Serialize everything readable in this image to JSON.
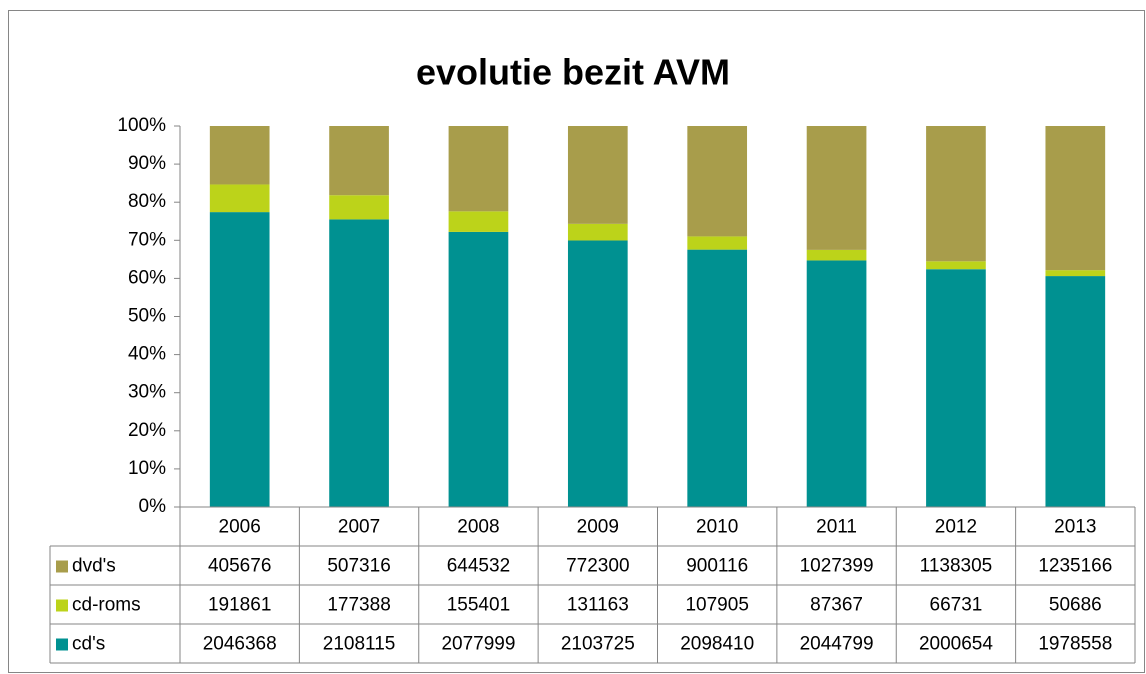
{
  "chart_data": {
    "type": "stacked100",
    "title": "evolutie bezit AVM",
    "categories": [
      "2006",
      "2007",
      "2008",
      "2009",
      "2010",
      "2011",
      "2012",
      "2013"
    ],
    "series": [
      {
        "name": "cd's",
        "color": "#009191",
        "values": [
          2046368,
          2108115,
          2077999,
          2103725,
          2098410,
          2044799,
          2000654,
          1978558
        ]
      },
      {
        "name": "cd-roms",
        "color": "#bcd31a",
        "values": [
          191861,
          177388,
          155401,
          131163,
          107905,
          87367,
          66731,
          50686
        ]
      },
      {
        "name": "dvd's",
        "color": "#a89d4b",
        "values": [
          405676,
          507316,
          644532,
          772300,
          900116,
          1027399,
          1138305,
          1235166
        ]
      }
    ],
    "ylim": [
      0,
      100
    ],
    "yticks": [
      {
        "value": 0,
        "label": "0%"
      },
      {
        "value": 10,
        "label": "10%"
      },
      {
        "value": 20,
        "label": "20%"
      },
      {
        "value": 30,
        "label": "30%"
      },
      {
        "value": 40,
        "label": "40%"
      },
      {
        "value": 50,
        "label": "50%"
      },
      {
        "value": 60,
        "label": "60%"
      },
      {
        "value": 70,
        "label": "70%"
      },
      {
        "value": 80,
        "label": "80%"
      },
      {
        "value": 90,
        "label": "90%"
      },
      {
        "value": 100,
        "label": "100%"
      }
    ],
    "grid": false,
    "data_table": true
  }
}
